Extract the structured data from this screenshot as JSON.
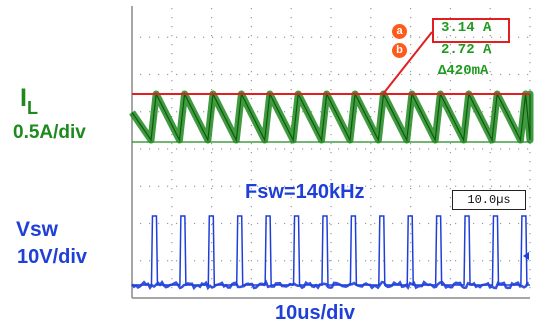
{
  "chart_data": {
    "type": "line",
    "xlabel": "10us/div",
    "annotation": "Fsw=140kHz",
    "timebase": "10.0µs",
    "x_divisions": 10,
    "switching_period_us": 7.14,
    "series": [
      {
        "name": "IL",
        "scale": "0.5A/div",
        "color": "#1e8a1e",
        "waveform": "triangle",
        "peak_A": 3.14,
        "valley_A": 2.72,
        "ripple": "Δ420mA"
      },
      {
        "name": "Vsw",
        "scale": "10V/div",
        "color": "#1f3fd8",
        "waveform": "pulse"
      }
    ],
    "cursors": {
      "a_label": "a",
      "b_label": "b",
      "a_value": "3.14 A",
      "b_value": "2.72 A",
      "delta": "Δ420mA"
    },
    "grid": true
  },
  "labels": {
    "il_main": "I",
    "il_sub": "L",
    "il_scale": "0.5A/div",
    "vsw_name": "Vsw",
    "vsw_scale": "10V/div"
  }
}
